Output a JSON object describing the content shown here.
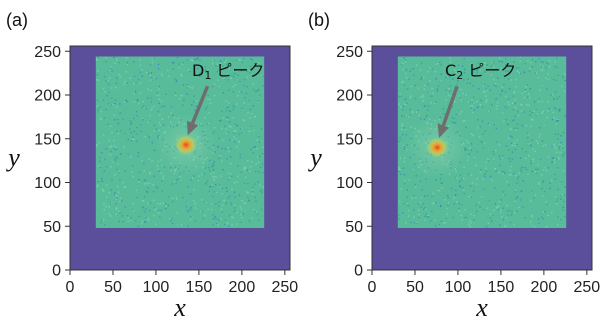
{
  "figure": {
    "background": "#ffffff"
  },
  "colors": {
    "outside": "#5b4f9c",
    "field": "#58bc9a",
    "field_light": "#8fd3b0",
    "field_dark": "#2e9a9f",
    "peak_core": "#e8451f",
    "peak_mid": "#f2a02a",
    "peak_outer": "#cfd14a",
    "arrow": "#6e6e6e"
  },
  "chart_data": [
    {
      "type": "heatmap",
      "panel_label": "(a)",
      "xlabel": "x",
      "ylabel": "y",
      "xlim": [
        0,
        256
      ],
      "ylim": [
        0,
        256
      ],
      "xticks": [
        0,
        50,
        100,
        150,
        200,
        250
      ],
      "yticks": [
        0,
        50,
        100,
        150,
        200,
        250
      ],
      "data_region": {
        "x_range": [
          30,
          226
        ],
        "y_range": [
          48,
          244
        ]
      },
      "peak": {
        "x": 135,
        "y": 143
      },
      "annotation": {
        "text_main": "D",
        "text_sub": "1",
        "text_rest": "ピーク",
        "x": 142,
        "y": 222,
        "arrow_from": [
          160,
          210
        ],
        "arrow_to": [
          137,
          154
        ]
      }
    },
    {
      "type": "heatmap",
      "panel_label": "(b)",
      "xlabel": "x",
      "ylabel": "y",
      "xlim": [
        0,
        256
      ],
      "ylim": [
        0,
        256
      ],
      "xticks": [
        0,
        50,
        100,
        150,
        200,
        250
      ],
      "yticks": [
        0,
        50,
        100,
        150,
        200,
        250
      ],
      "data_region": {
        "x_range": [
          30,
          226
        ],
        "y_range": [
          48,
          244
        ]
      },
      "peak": {
        "x": 76,
        "y": 140
      },
      "annotation": {
        "text_main": "C",
        "text_sub": "2",
        "text_rest": "ピーク",
        "x": 85,
        "y": 222,
        "arrow_from": [
          99,
          210
        ],
        "arrow_to": [
          78,
          151
        ]
      }
    }
  ]
}
